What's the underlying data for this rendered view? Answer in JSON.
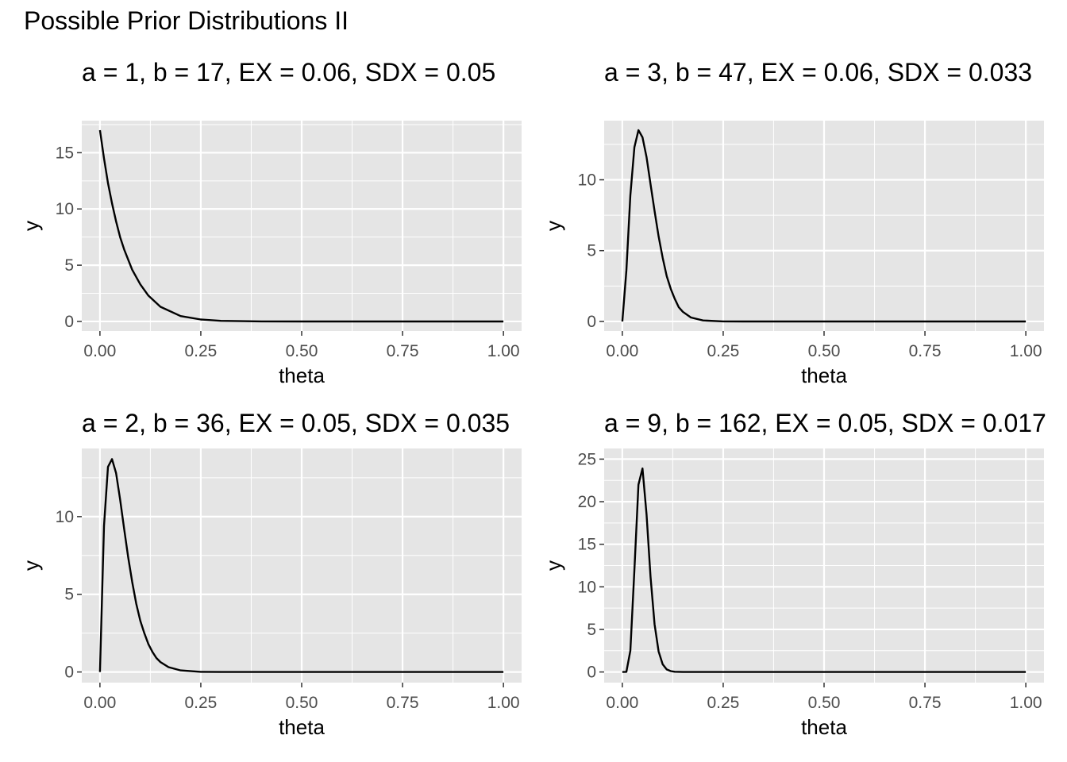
{
  "title": "Possible Prior Distributions II",
  "colors": {
    "panel_bg": "#e5e5e5",
    "grid": "#ffffff",
    "line": "#000000",
    "tick_text": "#4d4d4d"
  },
  "chart_data": [
    {
      "type": "line",
      "title": "a = 1, b = 17, EX = 0.06, SDX = 0.05",
      "a": 1,
      "b": 17,
      "xlabel": "theta",
      "ylabel": "y",
      "xlim": [
        0,
        1
      ],
      "ylim": [
        0,
        17
      ],
      "xticks": [
        "0.00",
        "0.25",
        "0.50",
        "0.75",
        "1.00"
      ],
      "yticks": [
        0,
        5,
        10,
        15
      ],
      "grid": true,
      "legend": "none",
      "x": [
        0.0,
        0.01,
        0.02,
        0.03,
        0.04,
        0.05,
        0.06,
        0.08,
        0.1,
        0.12,
        0.15,
        0.2,
        0.25,
        0.3,
        0.4,
        0.5,
        0.6,
        0.8,
        1.0
      ],
      "y": [
        17.0,
        14.5,
        12.3,
        10.5,
        8.9,
        7.5,
        6.4,
        4.6,
        3.3,
        2.3,
        1.3,
        0.48,
        0.17,
        0.05,
        0.005,
        0,
        0,
        0,
        0
      ]
    },
    {
      "type": "line",
      "title": "a = 3, b = 47, EX = 0.06, SDX = 0.033",
      "a": 3,
      "b": 47,
      "xlabel": "theta",
      "ylabel": "y",
      "xlim": [
        0,
        1
      ],
      "ylim": [
        0,
        13.5
      ],
      "xticks": [
        "0.00",
        "0.25",
        "0.50",
        "0.75",
        "1.00"
      ],
      "yticks": [
        0,
        5,
        10
      ],
      "grid": true,
      "legend": "none",
      "x": [
        0.0,
        0.01,
        0.02,
        0.03,
        0.04,
        0.05,
        0.06,
        0.07,
        0.08,
        0.09,
        0.1,
        0.11,
        0.12,
        0.13,
        0.14,
        0.15,
        0.17,
        0.2,
        0.25,
        0.3,
        0.4,
        0.5,
        0.6,
        0.8,
        1.0
      ],
      "y": [
        0,
        3.6,
        8.9,
        12.3,
        13.5,
        13.0,
        11.6,
        9.7,
        7.8,
        6.0,
        4.5,
        3.2,
        2.3,
        1.6,
        1.0,
        0.68,
        0.28,
        0.07,
        0.005,
        0,
        0,
        0,
        0,
        0,
        0
      ]
    },
    {
      "type": "line",
      "title": "a = 2, b = 36, EX = 0.05, SDX = 0.035",
      "a": 2,
      "b": 36,
      "xlabel": "theta",
      "ylabel": "y",
      "xlim": [
        0,
        1
      ],
      "ylim": [
        0,
        13.7
      ],
      "xticks": [
        "0.00",
        "0.25",
        "0.50",
        "0.75",
        "1.00"
      ],
      "yticks": [
        0,
        5,
        10
      ],
      "grid": true,
      "legend": "none",
      "x": [
        0.0,
        0.01,
        0.02,
        0.03,
        0.04,
        0.05,
        0.06,
        0.07,
        0.08,
        0.09,
        0.1,
        0.11,
        0.12,
        0.13,
        0.14,
        0.15,
        0.17,
        0.2,
        0.25,
        0.3,
        0.4,
        0.5,
        0.6,
        0.8,
        1.0
      ],
      "y": [
        0,
        9.4,
        13.2,
        13.7,
        12.8,
        11.1,
        9.2,
        7.4,
        5.8,
        4.4,
        3.3,
        2.5,
        1.8,
        1.3,
        0.9,
        0.64,
        0.31,
        0.1,
        0.01,
        0,
        0,
        0,
        0,
        0,
        0
      ]
    },
    {
      "type": "line",
      "title": "a = 9, b = 162, EX = 0.05, SDX = 0.017",
      "a": 9,
      "b": 162,
      "xlabel": "theta",
      "ylabel": "y",
      "xlim": [
        0,
        1
      ],
      "ylim": [
        0,
        25
      ],
      "xticks": [
        "0.00",
        "0.25",
        "0.50",
        "0.75",
        "1.00"
      ],
      "yticks": [
        0,
        5,
        10,
        15,
        20,
        25
      ],
      "grid": true,
      "legend": "none",
      "x": [
        0.0,
        0.01,
        0.02,
        0.03,
        0.04,
        0.05,
        0.06,
        0.07,
        0.08,
        0.09,
        0.1,
        0.11,
        0.12,
        0.13,
        0.15,
        0.2,
        0.3,
        0.5,
        1.0
      ],
      "y": [
        0,
        0.02,
        2.5,
        12.0,
        22.0,
        23.9,
        18.5,
        11.2,
        5.6,
        2.4,
        0.9,
        0.3,
        0.1,
        0.03,
        0,
        0,
        0,
        0,
        0
      ]
    }
  ]
}
